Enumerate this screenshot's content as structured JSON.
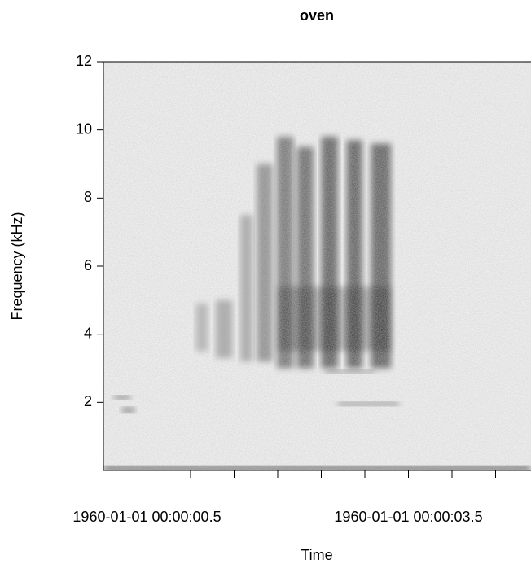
{
  "chart_data": {
    "type": "spectrogram",
    "title": "oven",
    "x_label": "Time",
    "y_label": "Frequency (kHz)",
    "xlim": [
      0,
      4.9
    ],
    "ylim": [
      0,
      12
    ],
    "yticks": [
      2,
      4,
      6,
      8,
      10,
      12
    ],
    "xticks": [
      {
        "value": 0.5,
        "label": "1960-01-01 00:00:00.5"
      },
      {
        "value": 3.5,
        "label": "1960-01-01 00:00:03.5"
      }
    ],
    "xticks_minor": [
      1.0,
      1.5,
      2.0,
      2.5,
      3.0,
      4.0,
      4.5
    ],
    "color": "#000000",
    "notes": [
      {
        "t0": 0,
        "t1": 4.9,
        "f0": 0,
        "f1": 0.12,
        "level": 0.8
      },
      {
        "t0": 1.06,
        "t1": 1.2,
        "f0": 3.5,
        "f1": 4.9,
        "level": 0.25
      },
      {
        "t0": 1.29,
        "t1": 1.48,
        "f0": 3.3,
        "f1": 5.0,
        "level": 0.3
      },
      {
        "t0": 1.57,
        "t1": 1.71,
        "f0": 3.2,
        "f1": 7.5,
        "level": 0.3
      },
      {
        "t0": 1.76,
        "t1": 1.94,
        "f0": 3.2,
        "f1": 9.0,
        "level": 0.4
      },
      {
        "t0": 1.99,
        "t1": 2.18,
        "f0": 3.0,
        "f1": 9.8,
        "level": 0.5
      },
      {
        "t0": 2.22,
        "t1": 2.41,
        "f0": 3.0,
        "f1": 9.5,
        "level": 0.55
      },
      {
        "t0": 2.5,
        "t1": 2.69,
        "f0": 3.0,
        "f1": 9.8,
        "level": 0.6
      },
      {
        "t0": 2.79,
        "t1": 2.97,
        "f0": 3.0,
        "f1": 9.7,
        "level": 0.6
      },
      {
        "t0": 3.07,
        "t1": 3.3,
        "f0": 3.0,
        "f1": 9.6,
        "level": 0.6
      },
      {
        "t0": 2.0,
        "t1": 3.3,
        "f0": 3.5,
        "f1": 5.4,
        "level": 0.3
      },
      {
        "t0": 0.12,
        "t1": 0.31,
        "f0": 2.1,
        "f1": 2.2,
        "level": 0.6
      },
      {
        "t0": 0.21,
        "t1": 0.36,
        "f0": 1.7,
        "f1": 1.85,
        "level": 0.5
      },
      {
        "t0": 2.69,
        "t1": 3.39,
        "f0": 1.9,
        "f1": 2.0,
        "level": 0.5
      },
      {
        "t0": 2.55,
        "t1": 3.11,
        "f0": 2.85,
        "f1": 2.95,
        "level": 0.4
      }
    ]
  }
}
